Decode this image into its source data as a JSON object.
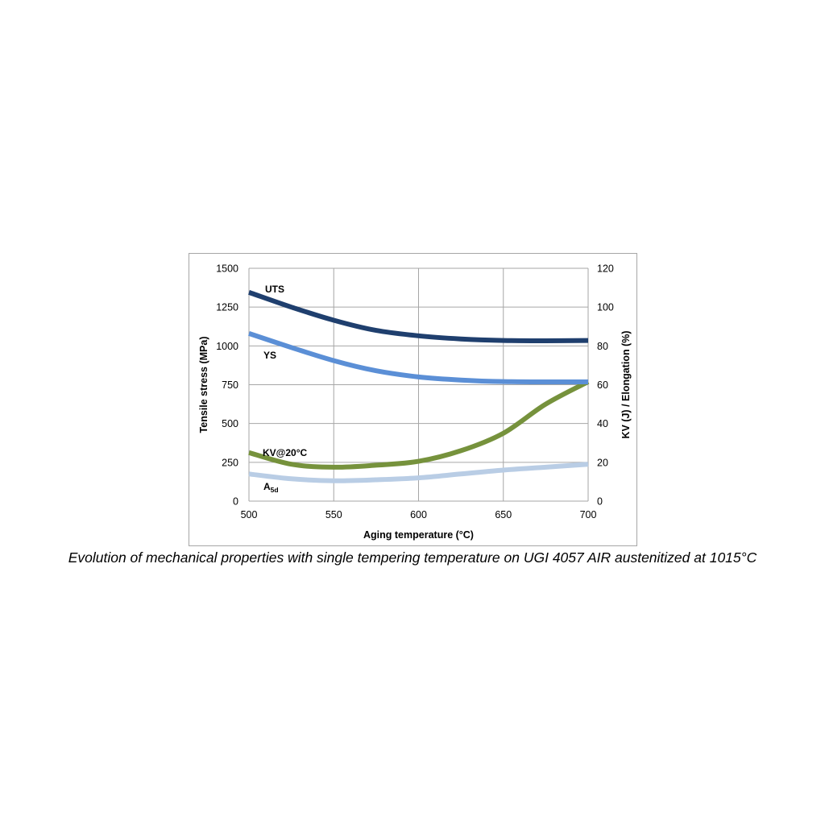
{
  "caption": "Evolution of mechanical properties with single tempering temperature on UGI 4057 AIR austenitized at 1015°C",
  "chart_data": {
    "type": "line",
    "title": "",
    "xlabel": "Aging temperature (°C)",
    "ylabel": "Tensile stress (MPa)",
    "y2label": "KV (J) / Elongation (%)",
    "xlim": [
      500,
      700
    ],
    "ylim": [
      0,
      1500
    ],
    "y2lim": [
      0,
      120
    ],
    "xticks": [
      500,
      550,
      600,
      650,
      700
    ],
    "yticks": [
      0,
      250,
      500,
      750,
      1000,
      1250,
      1500
    ],
    "y2ticks": [
      0,
      20,
      40,
      60,
      80,
      100,
      120
    ],
    "grid": true,
    "legend": "none",
    "series": [
      {
        "name": "UTS",
        "axis": "left",
        "color": "#1f3f6e",
        "x": [
          500,
          525,
          550,
          575,
          600,
          625,
          650,
          675,
          700
        ],
        "y": [
          1345,
          1250,
          1165,
          1100,
          1065,
          1045,
          1035,
          1033,
          1035
        ]
      },
      {
        "name": "YS",
        "axis": "left",
        "color": "#5b8fd6",
        "x": [
          500,
          525,
          550,
          575,
          600,
          625,
          650,
          675,
          700
        ],
        "y": [
          1080,
          990,
          905,
          840,
          800,
          780,
          770,
          768,
          768
        ]
      },
      {
        "name": "KV@20°C",
        "axis": "right",
        "color": "#76923c",
        "x": [
          500,
          525,
          550,
          575,
          600,
          625,
          650,
          675,
          700
        ],
        "y": [
          25,
          19,
          17.5,
          18.5,
          20.5,
          26,
          35,
          50,
          61.5
        ]
      },
      {
        "name": "A",
        "name_sub": "5d",
        "axis": "right",
        "color": "#b9cde5",
        "x": [
          500,
          525,
          550,
          575,
          600,
          625,
          650,
          675,
          700
        ],
        "y": [
          14,
          11.5,
          10.5,
          11,
          12,
          14,
          16,
          17.5,
          19
        ]
      }
    ]
  }
}
